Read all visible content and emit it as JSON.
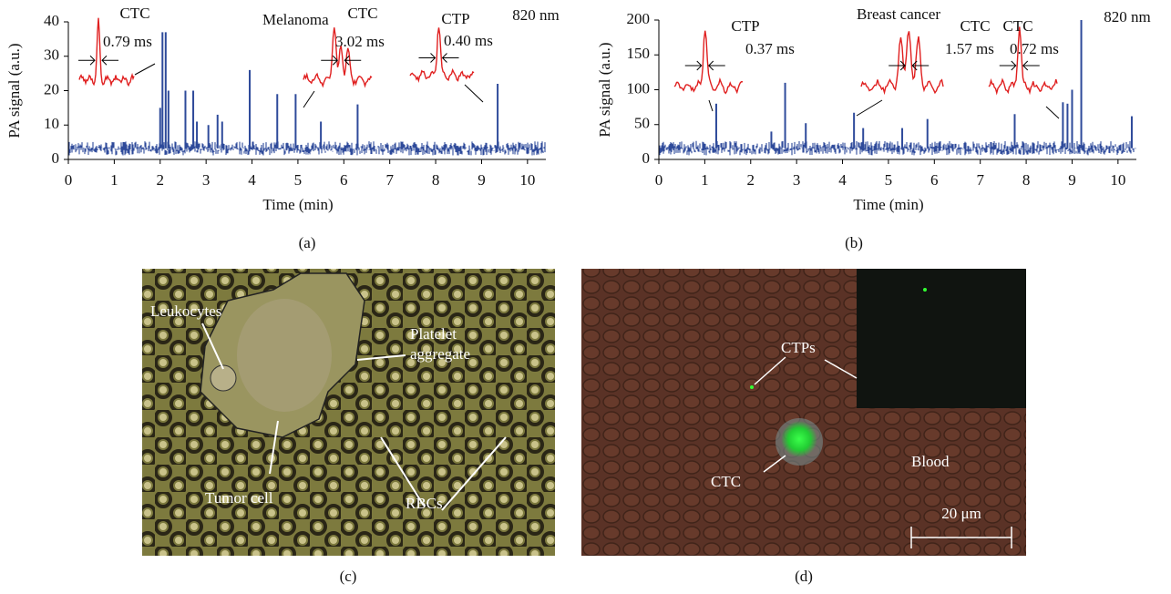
{
  "chart_data": [
    {
      "type": "spike",
      "panel_label": "(a)",
      "title": "Melanoma",
      "wavelength": "820 nm",
      "x_label": "Time (min)",
      "y_label": "PA signal (a.u.)",
      "color": "#2e4a9a",
      "xlim": [
        0,
        10.4
      ],
      "ylim": [
        0,
        40
      ],
      "xticks": [
        0,
        1,
        2,
        3,
        4,
        5,
        6,
        7,
        8,
        9,
        10
      ],
      "yticks": [
        0,
        10,
        20,
        30,
        40
      ],
      "x": [
        2.0,
        2.05,
        2.12,
        2.18,
        2.55,
        2.72,
        2.8,
        3.05,
        3.25,
        3.35,
        3.95,
        4.55,
        4.95,
        5.5,
        6.3,
        9.35
      ],
      "values": [
        15,
        37,
        37,
        20,
        20,
        20,
        11,
        10,
        13,
        11,
        26,
        19,
        19,
        11,
        16,
        22
      ],
      "annotations": [
        {
          "label": "CTC",
          "duration": "0.79 ms"
        },
        {
          "label": "CTC",
          "duration": "3.02 ms"
        },
        {
          "label": "CTP",
          "duration": "0.40 ms"
        }
      ]
    },
    {
      "type": "spike",
      "panel_label": "(b)",
      "title": "Breast cancer",
      "wavelength": "820 nm",
      "x_label": "Time (min)",
      "y_label": "PA signal (a.u.)",
      "color": "#2e4a9a",
      "xlim": [
        0,
        10.4
      ],
      "ylim": [
        0,
        200
      ],
      "xticks": [
        0,
        1,
        2,
        3,
        4,
        5,
        6,
        7,
        8,
        9,
        10
      ],
      "yticks": [
        0,
        50,
        100,
        150,
        200
      ],
      "x": [
        1.25,
        2.45,
        2.75,
        3.2,
        4.25,
        4.45,
        5.3,
        5.85,
        7.75,
        8.8,
        8.9,
        9.0,
        9.2,
        10.3
      ],
      "values": [
        80,
        40,
        110,
        52,
        67,
        45,
        45,
        58,
        65,
        82,
        80,
        100,
        200,
        62
      ],
      "annotations": [
        {
          "label": "CTP",
          "duration": "0.37 ms"
        },
        {
          "label": "CTC",
          "duration": "1.57 ms"
        },
        {
          "label": "CTC",
          "duration": "0.72 ms"
        }
      ]
    }
  ],
  "images": [
    {
      "panel_label": "(c)",
      "labels": [
        "Leukocytes",
        "Platelet",
        "aggregate",
        "Tumor cell",
        "RBCs"
      ]
    },
    {
      "panel_label": "(d)",
      "labels": [
        "CTPs",
        "CTC",
        "Blood",
        "20 μm"
      ]
    }
  ]
}
